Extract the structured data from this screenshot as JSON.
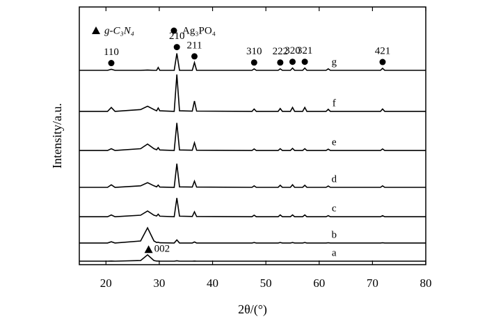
{
  "chart_data": {
    "type": "line",
    "xlabel": "2θ/(°)",
    "ylabel": "Intensity/a.u.",
    "xlim": [
      15,
      80
    ],
    "ylim": [
      0,
      100
    ],
    "xticks": [
      20,
      30,
      40,
      50,
      60,
      70,
      80
    ],
    "x": [
      15,
      20.3,
      21,
      21.7,
      26.5,
      27.8,
      29,
      29.5,
      29.8,
      30.1,
      32.8,
      33.3,
      33.8,
      36.2,
      36.6,
      37,
      47.4,
      47.8,
      48.2,
      52.3,
      52.7,
      53.1,
      54.6,
      55,
      55.4,
      56.9,
      57.3,
      57.7,
      61.3,
      61.7,
      62.1,
      71.5,
      71.9,
      72.3,
      80
    ],
    "series": [
      {
        "name": "a",
        "color": "#000000",
        "values": [
          1.35,
          1.35,
          1.4,
          1.35,
          1.6,
          3.8,
          1.6,
          1.4,
          1.4,
          1.35,
          1.35,
          1.5,
          1.35,
          1.35,
          1.4,
          1.35,
          1.35,
          1.35,
          1.35,
          1.35,
          1.35,
          1.35,
          1.35,
          1.35,
          1.35,
          1.35,
          1.35,
          1.35,
          1.35,
          1.35,
          1.35,
          1.35,
          1.35,
          1.35,
          1.35
        ]
      },
      {
        "name": "b",
        "color": "#000000",
        "values": [
          8.4,
          8.4,
          8.9,
          8.4,
          9.2,
          14.3,
          9.2,
          8.6,
          8.7,
          8.5,
          8.4,
          9.6,
          8.4,
          8.4,
          8.8,
          8.4,
          8.4,
          8.6,
          8.4,
          8.4,
          8.6,
          8.4,
          8.4,
          8.6,
          8.4,
          8.4,
          8.6,
          8.4,
          8.4,
          8.5,
          8.4,
          8.4,
          8.5,
          8.4,
          8.4
        ]
      },
      {
        "name": "c",
        "color": "#000000",
        "values": [
          18.6,
          18.6,
          19.3,
          18.6,
          19.2,
          20.8,
          19.2,
          18.9,
          19.6,
          18.8,
          18.6,
          25.9,
          18.8,
          18.7,
          20.5,
          18.7,
          18.6,
          19.2,
          18.6,
          18.6,
          19.3,
          18.6,
          18.6,
          19.3,
          18.6,
          18.6,
          19.3,
          18.6,
          18.6,
          19.0,
          18.6,
          18.6,
          19.0,
          18.6,
          18.6
        ]
      },
      {
        "name": "d",
        "color": "#000000",
        "values": [
          30,
          30,
          31,
          30,
          30.6,
          31.8,
          30.6,
          30.2,
          30.9,
          30.1,
          30,
          39.2,
          30.2,
          30.1,
          32.4,
          30.1,
          30,
          30.6,
          30,
          30,
          30.8,
          30,
          30,
          31,
          30,
          30,
          30.8,
          30,
          30,
          30.5,
          30,
          30,
          30.6,
          30,
          30
        ]
      },
      {
        "name": "e",
        "color": "#000000",
        "values": [
          44.3,
          44.3,
          45,
          44.3,
          45,
          46.8,
          45,
          44.6,
          45.4,
          44.5,
          44.3,
          55,
          44.5,
          44.4,
          47.3,
          44.4,
          44.3,
          44.9,
          44.3,
          44.3,
          45,
          44.3,
          44.3,
          45.1,
          44.3,
          44.3,
          45,
          44.3,
          44.3,
          44.8,
          44.3,
          44.3,
          44.9,
          44.3,
          44.3
        ]
      },
      {
        "name": "f",
        "color": "#000000",
        "values": [
          59.5,
          59.5,
          61,
          59.5,
          60.2,
          61.5,
          60.2,
          59.7,
          60.8,
          59.7,
          59.5,
          73.8,
          59.7,
          59.6,
          63.5,
          59.6,
          59.5,
          60.4,
          59.5,
          59.5,
          60.6,
          59.5,
          59.5,
          61,
          59.5,
          59.5,
          61,
          59.5,
          59.5,
          60.3,
          59.5,
          59.5,
          60.4,
          59.5,
          59.5
        ]
      },
      {
        "name": "g",
        "color": "#000000",
        "values": [
          75.4,
          75.4,
          75.8,
          75.4,
          75.4,
          75.5,
          75.4,
          75.4,
          76.5,
          75.4,
          75.4,
          82,
          75.4,
          75.4,
          78.4,
          75.4,
          75.4,
          76,
          75.4,
          75.4,
          76,
          75.4,
          75.4,
          76.3,
          75.4,
          75.4,
          76.3,
          75.4,
          75.4,
          76,
          75.4,
          75.4,
          76.2,
          75.4,
          75.4
        ]
      }
    ],
    "legend": [
      {
        "marker": "triangle",
        "label": "g-C₃N₄"
      },
      {
        "marker": "circle",
        "label": "Ag₃PO₄"
      }
    ],
    "peak_labels": [
      {
        "label": "110",
        "x": 21,
        "marker": "circle"
      },
      {
        "label": "210",
        "x": 33.3,
        "marker": "circle"
      },
      {
        "label": "211",
        "x": 36.6,
        "marker": "circle"
      },
      {
        "label": "310",
        "x": 47.8,
        "marker": "circle"
      },
      {
        "label": "222",
        "x": 52.7,
        "marker": "circle"
      },
      {
        "label": "320",
        "x": 55,
        "marker": "circle"
      },
      {
        "label": "321",
        "x": 57.3,
        "marker": "circle"
      },
      {
        "label": "421",
        "x": 71.9,
        "marker": "circle"
      },
      {
        "label": "002",
        "x": 28,
        "marker": "triangle"
      }
    ]
  }
}
